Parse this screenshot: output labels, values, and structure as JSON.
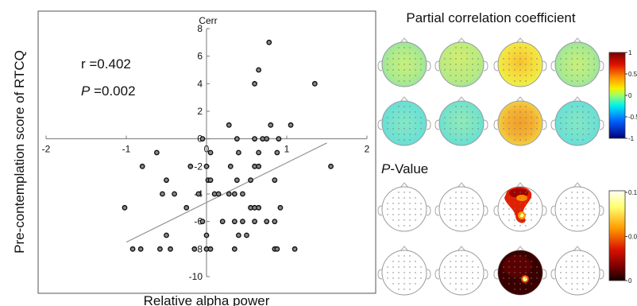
{
  "chart_data": [
    {
      "type": "scatter",
      "xlabel": "Relative alpha power",
      "ylabel": "Pre-contemplation score of RTCQ",
      "axis_title": "Cerr",
      "xlim": [
        -2,
        2
      ],
      "ylim": [
        -10,
        8
      ],
      "xticks": [
        "-2",
        "-1",
        "0",
        "1",
        "2"
      ],
      "yticks": [
        "8",
        "6",
        "4",
        "2",
        "0",
        "-2",
        "-4",
        "-6",
        "-8",
        "-10"
      ],
      "annotations": {
        "r": "r =0.402",
        "p_letter": "P",
        "p_rest": " =0.002"
      },
      "regression_line": {
        "x": [
          -1.0,
          1.5
        ],
        "y": [
          -7.5,
          -0.3
        ]
      },
      "points": [
        [
          0.78,
          7.0
        ],
        [
          0.65,
          5.0
        ],
        [
          0.6,
          4.0
        ],
        [
          1.35,
          4.0
        ],
        [
          0.28,
          1.0
        ],
        [
          0.8,
          1.0
        ],
        [
          1.05,
          1.0
        ],
        [
          -0.05,
          0.0
        ],
        [
          0.38,
          0.0
        ],
        [
          0.6,
          0.0
        ],
        [
          0.7,
          0.0
        ],
        [
          0.75,
          0.0
        ],
        [
          0.9,
          0.0
        ],
        [
          -0.62,
          -1.0
        ],
        [
          0.05,
          -1.0
        ],
        [
          0.4,
          -1.0
        ],
        [
          0.65,
          -1.0
        ],
        [
          0.88,
          -1.0
        ],
        [
          1.55,
          -2.0
        ],
        [
          -0.8,
          -2.0
        ],
        [
          -0.2,
          -2.0
        ],
        [
          0.0,
          -2.0
        ],
        [
          0.3,
          -2.0
        ],
        [
          0.6,
          -2.0
        ],
        [
          0.65,
          -2.0
        ],
        [
          -0.5,
          -3.0
        ],
        [
          0.02,
          -3.0
        ],
        [
          0.05,
          -3.0
        ],
        [
          0.38,
          -3.0
        ],
        [
          0.55,
          -3.0
        ],
        [
          0.85,
          -3.0
        ],
        [
          -0.55,
          -4.0
        ],
        [
          -0.4,
          -4.0
        ],
        [
          -0.1,
          -4.0
        ],
        [
          0.1,
          -4.0
        ],
        [
          0.15,
          -4.0
        ],
        [
          0.28,
          -4.0
        ],
        [
          0.35,
          -4.0
        ],
        [
          0.45,
          -4.0
        ],
        [
          -1.02,
          -5.0
        ],
        [
          -0.25,
          -5.0
        ],
        [
          0.55,
          -5.0
        ],
        [
          0.6,
          -5.0
        ],
        [
          0.65,
          -5.0
        ],
        [
          0.92,
          -5.0
        ],
        [
          -0.05,
          -6.0
        ],
        [
          0.2,
          -6.0
        ],
        [
          0.35,
          -6.0
        ],
        [
          0.45,
          -6.0
        ],
        [
          0.6,
          -6.0
        ],
        [
          0.75,
          -6.0
        ],
        [
          0.85,
          -6.0
        ],
        [
          -0.5,
          -7.0
        ],
        [
          0.0,
          -7.0
        ],
        [
          0.4,
          -7.0
        ],
        [
          0.5,
          -7.0
        ],
        [
          -0.92,
          -8.0
        ],
        [
          -0.82,
          -8.0
        ],
        [
          -0.58,
          -8.0
        ],
        [
          -0.45,
          -8.0
        ],
        [
          -0.15,
          -8.0
        ],
        [
          0.0,
          -8.0
        ],
        [
          0.05,
          -8.0
        ],
        [
          0.35,
          -8.0
        ],
        [
          0.85,
          -8.0
        ],
        [
          0.88,
          -8.0
        ],
        [
          1.1,
          -8.0
        ]
      ]
    },
    {
      "type": "heatmap",
      "title": "Partial correlation coefficient",
      "colorbar_ticks": [
        "1",
        "0.5",
        "0",
        "-0.5",
        "-1"
      ],
      "colorbar_range": [
        -1,
        1
      ],
      "maps": [
        {
          "row": 1,
          "col": 1,
          "level": 0.1
        },
        {
          "row": 1,
          "col": 2,
          "level": 0.15
        },
        {
          "row": 1,
          "col": 3,
          "level": 0.35
        },
        {
          "row": 1,
          "col": 4,
          "level": 0.15
        },
        {
          "row": 2,
          "col": 1,
          "level": -0.05
        },
        {
          "row": 2,
          "col": 2,
          "level": -0.05
        },
        {
          "row": 2,
          "col": 3,
          "level": 0.4
        },
        {
          "row": 2,
          "col": 4,
          "level": -0.02
        }
      ]
    },
    {
      "type": "heatmap",
      "title_letter": "P",
      "title_rest": "-Value",
      "colorbar_ticks": [
        "0.1",
        "0.05",
        "0"
      ],
      "colorbar_range": [
        0,
        0.1
      ],
      "maps": [
        {
          "row": 1,
          "col": 1,
          "fill": "none"
        },
        {
          "row": 1,
          "col": 2,
          "fill": "none"
        },
        {
          "row": 1,
          "col": 3,
          "fill": "partial"
        },
        {
          "row": 1,
          "col": 4,
          "fill": "none"
        },
        {
          "row": 2,
          "col": 1,
          "fill": "none"
        },
        {
          "row": 2,
          "col": 2,
          "fill": "none"
        },
        {
          "row": 2,
          "col": 3,
          "fill": "full"
        },
        {
          "row": 2,
          "col": 4,
          "fill": "edge"
        }
      ]
    }
  ]
}
